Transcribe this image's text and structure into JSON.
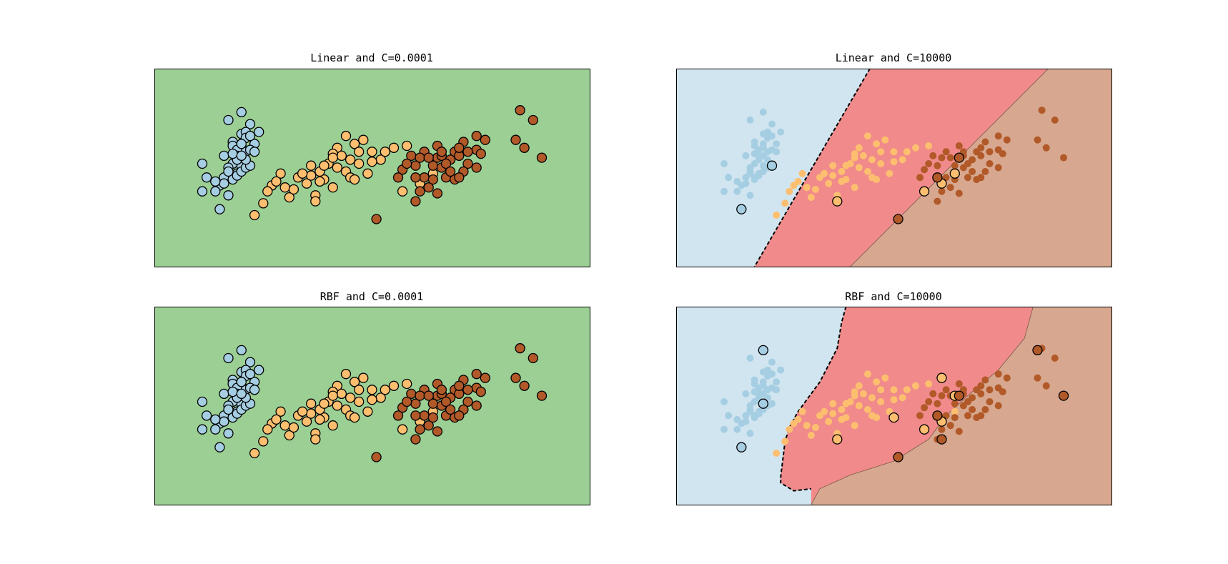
{
  "colors": {
    "class0_region": "#d1e5f0",
    "class1_region": "#f08a8b",
    "class2_region": "#d7a88f",
    "single_region": "#9bcf94",
    "class0_point": "#a6cee3",
    "class1_point": "#fdbf6f",
    "class2_point": "#b15928",
    "edge": "#000000"
  },
  "chart_data": [
    {
      "type": "scatter",
      "title": "Linear and C=0.0001",
      "xlabel": "",
      "ylabel": "",
      "xlim": [
        0,
        1
      ],
      "ylim": [
        0,
        1
      ],
      "ticks": "none",
      "background": "single",
      "sv_classes": [
        0,
        1,
        2
      ],
      "sv_extra": []
    },
    {
      "type": "scatter",
      "title": "Linear and C=10000",
      "xlabel": "",
      "ylabel": "",
      "xlim": [
        0,
        1
      ],
      "ylim": [
        0,
        1
      ],
      "ticks": "none",
      "background": "regions",
      "boundary_01": [
        [
          0.445,
          1.0
        ],
        [
          0.18,
          0.0
        ]
      ],
      "boundary_12": [
        [
          0.855,
          1.0
        ],
        [
          0.4,
          0.0
        ]
      ],
      "sv_classes": [],
      "sv_extra": [
        [
          0.22,
          0.51,
          0
        ],
        [
          0.15,
          0.29,
          0
        ],
        [
          0.37,
          0.33,
          1
        ],
        [
          0.57,
          0.38,
          1
        ],
        [
          0.61,
          0.42,
          1
        ],
        [
          0.64,
          0.47,
          1
        ],
        [
          0.51,
          0.24,
          2
        ],
        [
          0.6,
          0.45,
          2
        ],
        [
          0.65,
          0.55,
          2
        ]
      ]
    },
    {
      "type": "scatter",
      "title": "RBF and C=0.0001",
      "xlabel": "",
      "ylabel": "",
      "xlim": [
        0,
        1
      ],
      "ylim": [
        0,
        1
      ],
      "ticks": "none",
      "background": "single",
      "sv_classes": [
        0,
        1,
        2
      ],
      "sv_extra": []
    },
    {
      "type": "scatter",
      "title": "RBF and C=10000",
      "xlabel": "",
      "ylabel": "",
      "xlim": [
        0,
        1
      ],
      "ylim": [
        0,
        1
      ],
      "ticks": "none",
      "background": "regions",
      "boundary_01": [
        [
          0.39,
          1.0
        ],
        [
          0.38,
          0.92
        ],
        [
          0.37,
          0.79
        ],
        [
          0.33,
          0.62
        ],
        [
          0.3,
          0.53
        ],
        [
          0.28,
          0.47
        ],
        [
          0.26,
          0.39
        ],
        [
          0.25,
          0.32
        ],
        [
          0.24,
          0.14
        ],
        [
          0.24,
          0.11
        ],
        [
          0.27,
          0.07
        ],
        [
          0.31,
          0.08
        ]
      ],
      "boundary_12": [
        [
          0.82,
          1.0
        ],
        [
          0.8,
          0.84
        ],
        [
          0.74,
          0.68
        ],
        [
          0.68,
          0.57
        ],
        [
          0.62,
          0.45
        ],
        [
          0.58,
          0.33
        ],
        [
          0.5,
          0.22
        ],
        [
          0.4,
          0.15
        ],
        [
          0.33,
          0.08
        ],
        [
          0.31,
          0.0
        ]
      ],
      "sv_classes": [],
      "sv_extra": [
        [
          0.2,
          0.78,
          0
        ],
        [
          0.2,
          0.51,
          0
        ],
        [
          0.15,
          0.29,
          0
        ],
        [
          0.37,
          0.33,
          1
        ],
        [
          0.5,
          0.44,
          1
        ],
        [
          0.57,
          0.38,
          1
        ],
        [
          0.61,
          0.42,
          1
        ],
        [
          0.61,
          0.64,
          1
        ],
        [
          0.64,
          0.55,
          1
        ],
        [
          0.51,
          0.24,
          2
        ],
        [
          0.6,
          0.45,
          2
        ],
        [
          0.61,
          0.33,
          2
        ],
        [
          0.65,
          0.55,
          2
        ],
        [
          0.83,
          0.78,
          2
        ],
        [
          0.89,
          0.55,
          2
        ]
      ]
    }
  ],
  "points": {
    "class0": [
      [
        0.2,
        0.78
      ],
      [
        0.17,
        0.74
      ],
      [
        0.22,
        0.72
      ],
      [
        0.2,
        0.67
      ],
      [
        0.21,
        0.68
      ],
      [
        0.21,
        0.65
      ],
      [
        0.18,
        0.63
      ],
      [
        0.18,
        0.61
      ],
      [
        0.2,
        0.6
      ],
      [
        0.19,
        0.59
      ],
      [
        0.21,
        0.58
      ],
      [
        0.23,
        0.62
      ],
      [
        0.2,
        0.62
      ],
      [
        0.19,
        0.56
      ],
      [
        0.2,
        0.51
      ],
      [
        0.18,
        0.52
      ],
      [
        0.17,
        0.47
      ],
      [
        0.18,
        0.45
      ],
      [
        0.19,
        0.47
      ],
      [
        0.16,
        0.45
      ],
      [
        0.15,
        0.41
      ],
      [
        0.14,
        0.38
      ],
      [
        0.12,
        0.45
      ],
      [
        0.11,
        0.38
      ],
      [
        0.15,
        0.29
      ],
      [
        0.17,
        0.36
      ],
      [
        0.16,
        0.42
      ],
      [
        0.18,
        0.44
      ],
      [
        0.19,
        0.46
      ],
      [
        0.2,
        0.48
      ],
      [
        0.21,
        0.5
      ],
      [
        0.22,
        0.51
      ],
      [
        0.21,
        0.54
      ],
      [
        0.22,
        0.59
      ],
      [
        0.23,
        0.58
      ],
      [
        0.24,
        0.68
      ],
      [
        0.22,
        0.66
      ],
      [
        0.19,
        0.54
      ],
      [
        0.17,
        0.5
      ],
      [
        0.11,
        0.52
      ],
      [
        0.16,
        0.56
      ],
      [
        0.18,
        0.57
      ],
      [
        0.14,
        0.43
      ],
      [
        0.2,
        0.56
      ],
      [
        0.17,
        0.48
      ]
    ],
    "class1": [
      [
        0.44,
        0.66
      ],
      [
        0.46,
        0.62
      ],
      [
        0.48,
        0.64
      ],
      [
        0.42,
        0.6
      ],
      [
        0.43,
        0.56
      ],
      [
        0.41,
        0.57
      ],
      [
        0.44,
        0.48
      ],
      [
        0.4,
        0.52
      ],
      [
        0.47,
        0.52
      ],
      [
        0.55,
        0.6
      ],
      [
        0.5,
        0.58
      ],
      [
        0.52,
        0.54
      ],
      [
        0.58,
        0.61
      ],
      [
        0.39,
        0.44
      ],
      [
        0.37,
        0.36
      ],
      [
        0.38,
        0.43
      ],
      [
        0.35,
        0.42
      ],
      [
        0.36,
        0.46
      ],
      [
        0.33,
        0.45
      ],
      [
        0.3,
        0.4
      ],
      [
        0.31,
        0.35
      ],
      [
        0.29,
        0.47
      ],
      [
        0.27,
        0.41
      ],
      [
        0.26,
        0.38
      ],
      [
        0.37,
        0.33
      ],
      [
        0.38,
        0.48
      ],
      [
        0.45,
        0.54
      ],
      [
        0.49,
        0.47
      ],
      [
        0.45,
        0.45
      ],
      [
        0.42,
        0.5
      ],
      [
        0.41,
        0.4
      ],
      [
        0.46,
        0.44
      ],
      [
        0.39,
        0.51
      ],
      [
        0.53,
        0.58
      ],
      [
        0.47,
        0.58
      ],
      [
        0.5,
        0.53
      ],
      [
        0.34,
        0.47
      ],
      [
        0.36,
        0.51
      ],
      [
        0.28,
        0.43
      ],
      [
        0.57,
        0.38
      ],
      [
        0.61,
        0.42
      ],
      [
        0.64,
        0.47
      ],
      [
        0.25,
        0.32
      ],
      [
        0.23,
        0.26
      ],
      [
        0.41,
        0.55
      ],
      [
        0.32,
        0.39
      ]
    ],
    "class2": [
      [
        0.84,
        0.79
      ],
      [
        0.87,
        0.74
      ],
      [
        0.83,
        0.64
      ],
      [
        0.85,
        0.6
      ],
      [
        0.89,
        0.55
      ],
      [
        0.74,
        0.66
      ],
      [
        0.71,
        0.63
      ],
      [
        0.69,
        0.58
      ],
      [
        0.65,
        0.55
      ],
      [
        0.66,
        0.56
      ],
      [
        0.68,
        0.54
      ],
      [
        0.7,
        0.56
      ],
      [
        0.74,
        0.59
      ],
      [
        0.62,
        0.58
      ],
      [
        0.64,
        0.51
      ],
      [
        0.66,
        0.5
      ],
      [
        0.72,
        0.52
      ],
      [
        0.67,
        0.45
      ],
      [
        0.62,
        0.45
      ],
      [
        0.6,
        0.45
      ],
      [
        0.63,
        0.4
      ],
      [
        0.69,
        0.44
      ],
      [
        0.71,
        0.48
      ],
      [
        0.67,
        0.52
      ],
      [
        0.59,
        0.56
      ],
      [
        0.6,
        0.51
      ],
      [
        0.57,
        0.49
      ],
      [
        0.56,
        0.45
      ],
      [
        0.61,
        0.38
      ],
      [
        0.65,
        0.37
      ],
      [
        0.6,
        0.33
      ],
      [
        0.61,
        0.55
      ],
      [
        0.65,
        0.61
      ],
      [
        0.7,
        0.6
      ],
      [
        0.75,
        0.57
      ],
      [
        0.72,
        0.58
      ],
      [
        0.68,
        0.48
      ],
      [
        0.7,
        0.45
      ],
      [
        0.63,
        0.55
      ],
      [
        0.58,
        0.52
      ],
      [
        0.66,
        0.58
      ],
      [
        0.76,
        0.64
      ],
      [
        0.51,
        0.24
      ],
      [
        0.64,
        0.44
      ],
      [
        0.74,
        0.5
      ]
    ]
  }
}
